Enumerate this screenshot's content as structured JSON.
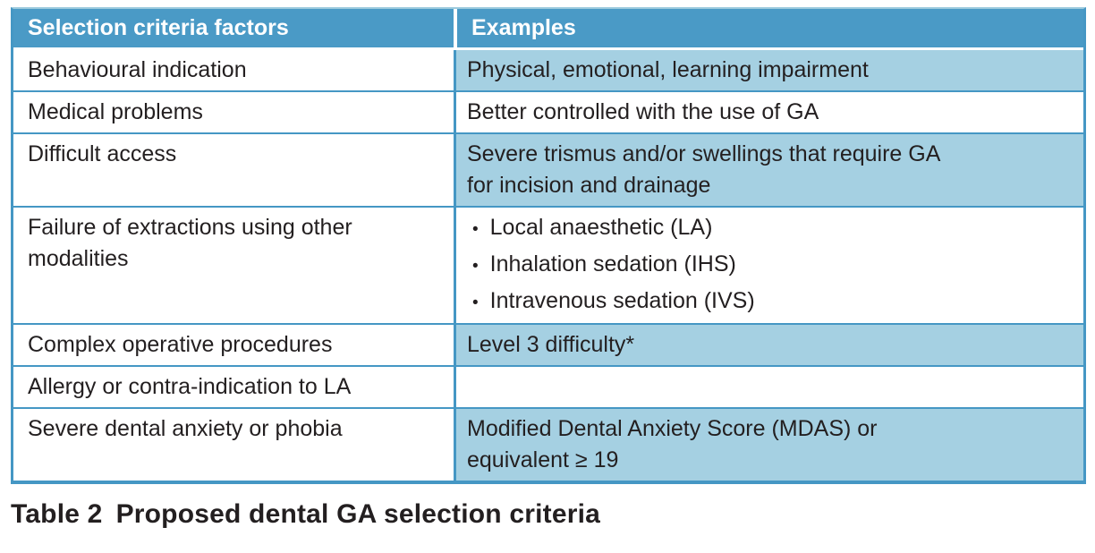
{
  "colors": {
    "header_bg": "#4a9ac6",
    "header_text": "#ffffff",
    "row_alt_bg": "#a5d0e2",
    "border_blue": "#4597c4",
    "border_top_light": "#9ccadd",
    "text_color": "#231f20",
    "page_bg": "#ffffff"
  },
  "bullet_char": "•",
  "table": {
    "columns": [
      "Selection criteria factors",
      "Examples"
    ],
    "rows": [
      {
        "factor": "Behavioural indication",
        "example_lines": [
          "Physical, emotional, learning impairment"
        ],
        "shaded": true
      },
      {
        "factor": "Medical problems",
        "example_lines": [
          "Better controlled with the use of GA"
        ],
        "shaded": false
      },
      {
        "factor": "Difficult access",
        "example_lines": [
          "Severe trismus and/or swellings that require GA",
          "for incision and drainage"
        ],
        "shaded": true
      },
      {
        "factor": "Failure of extractions using other modalities",
        "example_bullets": [
          "Local anaesthetic (LA)",
          "Inhalation sedation (IHS)",
          "Intravenous sedation (IVS)"
        ],
        "shaded": false
      },
      {
        "factor": "Complex operative procedures",
        "example_lines": [
          "Level 3 difficulty*"
        ],
        "shaded": true
      },
      {
        "factor": "Allergy or contra-indication to LA",
        "example_lines": [],
        "shaded": false
      },
      {
        "factor": "Severe dental anxiety or phobia",
        "example_lines": [
          "Modified Dental Anxiety Score (MDAS) or",
          "equivalent ≥ 19"
        ],
        "shaded": true
      }
    ]
  },
  "caption": {
    "label": "Table 2",
    "text": "Proposed dental GA selection criteria"
  }
}
